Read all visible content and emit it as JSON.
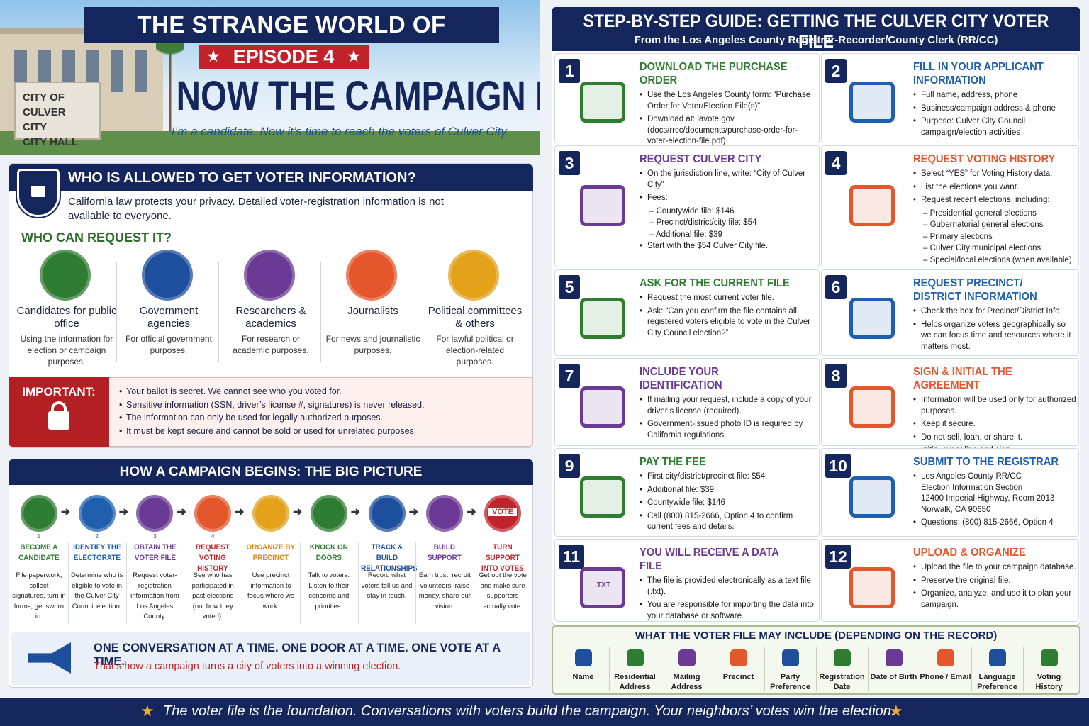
{
  "header": {
    "series_title": "THE STRANGE WORLD OF POLITICS",
    "episode": "EPISODE 4",
    "headline": "NOW THE CAMPAIGN BEGINS",
    "tagline": "I’m a candidate. Now it’s time to reach the voters of Culver City.",
    "sign": [
      "CITY OF",
      "CULVER CITY",
      "CITY HALL"
    ]
  },
  "who": {
    "title": "WHO IS ALLOWED TO GET VOTER INFORMATION?",
    "intro": "California law protects your privacy. Detailed voter-registration information is not available to everyone.",
    "subtitle": "WHO CAN REQUEST IT?",
    "groups": [
      {
        "name": "Candidates for public office",
        "desc": "Using the information for election or campaign purposes."
      },
      {
        "name": "Government agencies",
        "desc": "For official government purposes."
      },
      {
        "name": "Researchers & academics",
        "desc": "For research or academic purposes."
      },
      {
        "name": "Journalists",
        "desc": "For news and journalistic purposes."
      },
      {
        "name": "Political committees & others",
        "desc": "For lawful political or election-related purposes."
      }
    ],
    "important": {
      "label": "IMPORTANT:",
      "items": [
        "Your ballot is secret. We cannot see who you voted for.",
        "Sensitive information (SSN, driver’s license #, signatures) is never released.",
        "The information can only be used for legally authorized purposes.",
        "It must be kept secure and cannot be sold or used for unrelated purposes."
      ]
    }
  },
  "campaign": {
    "title": "HOW A CAMPAIGN BEGINS: THE BIG PICTURE",
    "steps": [
      {
        "number": "1",
        "name": "BECOME A CANDIDATE",
        "desc": "File paperwork, collect signatures, turn in forms, get sworn in."
      },
      {
        "number": "2",
        "name": "IDENTIFY THE ELECTORATE",
        "desc": "Determine who is eligible to vote in the Culver City Council election."
      },
      {
        "number": "3",
        "name": "OBTAIN THE VOTER FILE",
        "desc": "Request voter-registration information from Los Angeles County."
      },
      {
        "number": "4",
        "name": "REQUEST VOTING HISTORY",
        "desc": "See who has participated in past elections (not how they voted)."
      },
      {
        "name": "ORGANIZE BY PRECINCT",
        "desc": "Use precinct information to focus where we work."
      },
      {
        "name": "KNOCK ON DOORS",
        "desc": "Talk to voters. Listen to their concerns and priorities."
      },
      {
        "name": "TRACK & BUILD RELATIONSHIPS",
        "desc": "Record what voters tell us and stay in touch."
      },
      {
        "name": "BUILD SUPPORT",
        "desc": "Earn trust, recruit volunteers, raise money, share our vision."
      },
      {
        "name": "TURN SUPPORT INTO VOTES",
        "desc": "Get out the vote and make sure supporters actually vote.",
        "icon_label": "VOTE"
      }
    ],
    "slogan": "ONE CONVERSATION AT A TIME. ONE DOOR AT A TIME. ONE VOTE AT A TIME.",
    "slogan_sub": "That’s how a campaign turns a city of voters into a winning election."
  },
  "guide": {
    "title": "STEP-BY-STEP GUIDE: GETTING THE CULVER CITY VOTER FILE",
    "subtitle": "From the Los Angeles County Registrar-Recorder/County Clerk (RR/CC)",
    "steps": [
      {
        "number": "1",
        "title": "DOWNLOAD THE PURCHASE ORDER",
        "lines": [
          "Use the Los Angeles County form: “Purchase Order for Voter/Election File(s)”",
          "Download at: lavote.gov (docs/rrcc/documents/purchase-order-for-voter-election-file.pdf)"
        ]
      },
      {
        "number": "2",
        "title": "FILL IN YOUR APPLICANT INFORMATION",
        "lines": [
          "Full name, address, phone",
          "Business/campaign address & phone",
          "Purpose: Culver City Council campaign/election activities"
        ]
      },
      {
        "number": "3",
        "title": "REQUEST CULVER CITY",
        "lines": [
          "On the jurisdiction line, write: “City of Culver City”",
          "Fees:",
          "– Countywide file: $146",
          "– Precinct/district/city file: $54",
          "– Additional file: $39",
          "Start with the $54 Culver City file."
        ]
      },
      {
        "number": "4",
        "title": "REQUEST VOTING HISTORY",
        "lines": [
          "Select “YES” for Voting History data.",
          "List the elections you want.",
          "Request recent elections, including:",
          "– Presidential general elections",
          "– Gubernatorial general elections",
          "– Primary elections",
          "– Culver City municipal elections",
          "– Special/local elections (when available)"
        ]
      },
      {
        "number": "5",
        "title": "ASK FOR THE CURRENT FILE",
        "lines": [
          "Request the most current voter file.",
          "Ask: “Can you confirm the file contains all registered voters eligible to vote in the Culver City Council election?”"
        ]
      },
      {
        "number": "6",
        "title": "REQUEST PRECINCT/ DISTRICT INFORMATION",
        "lines": [
          "Check the box for Precinct/District Info.",
          "Helps organize voters geographically so we can focus time and resources where it matters most."
        ]
      },
      {
        "number": "7",
        "title": "INCLUDE YOUR IDENTIFICATION",
        "lines": [
          "If mailing your request, include a copy of your driver’s license (required).",
          "Government-issued photo ID is required by California regulations."
        ]
      },
      {
        "number": "8",
        "title": "SIGN & INITIAL THE AGREEMENT",
        "lines": [
          "Information will be used only for authorized purposes.",
          "Keep it secure.",
          "Do not sell, loan, or share it.",
          "Initial every line and sign."
        ]
      },
      {
        "number": "9",
        "title": "PAY THE FEE",
        "lines": [
          "First city/district/precinct file: $54",
          "Additional file: $39",
          "Countywide file: $146",
          "Call (800) 815-2666, Option 4 to confirm current fees and details."
        ]
      },
      {
        "number": "10",
        "title": "SUBMIT TO THE REGISTRAR",
        "lines": [
          "Los Angeles County RR/CC\nElection Information Section\n12400 Imperial Highway, Room 2013\nNorwalk, CA 90650",
          "Questions: (800) 815-2666, Option 4"
        ]
      },
      {
        "number": "11",
        "title": "YOU WILL RECEIVE A DATA FILE",
        "lines": [
          "The file is provided electronically as a text file (.txt).",
          "You are responsible for importing the data into your database or software."
        ],
        "icon_label": ".TXT"
      },
      {
        "number": "12",
        "title": "UPLOAD & ORGANIZE",
        "lines": [
          "Upload the file to your campaign database.",
          "Preserve the original file.",
          "Organize, analyze, and use it to plan your campaign."
        ]
      }
    ]
  },
  "fields": {
    "title": "WHAT THE VOTER FILE MAY INCLUDE (DEPENDING ON THE RECORD)",
    "items": [
      "Name",
      "Residential Address",
      "Mailing Address",
      "Precinct",
      "Party Preference",
      "Registration Date",
      "Date of Birth",
      "Phone / Email",
      "Language Preference",
      "Voting History"
    ]
  },
  "footer": "The voter file is the foundation. Conversations with voters build the campaign. Your neighbors’ votes win the election."
}
